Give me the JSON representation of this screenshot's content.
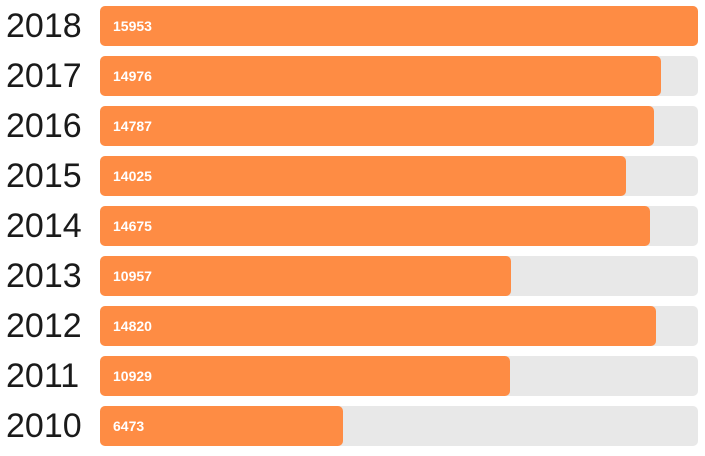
{
  "chart_data": {
    "type": "bar",
    "orientation": "horizontal",
    "categories": [
      "2018",
      "2017",
      "2016",
      "2015",
      "2014",
      "2013",
      "2012",
      "2011",
      "2010"
    ],
    "values": [
      15953,
      14976,
      14787,
      14025,
      14675,
      10957,
      14820,
      10929,
      6473
    ],
    "xlim": [
      0,
      15953
    ],
    "grid": false,
    "bar_color": "#fe8c44",
    "track_color": "#e8e8e8",
    "label_color": "#ffffff"
  }
}
